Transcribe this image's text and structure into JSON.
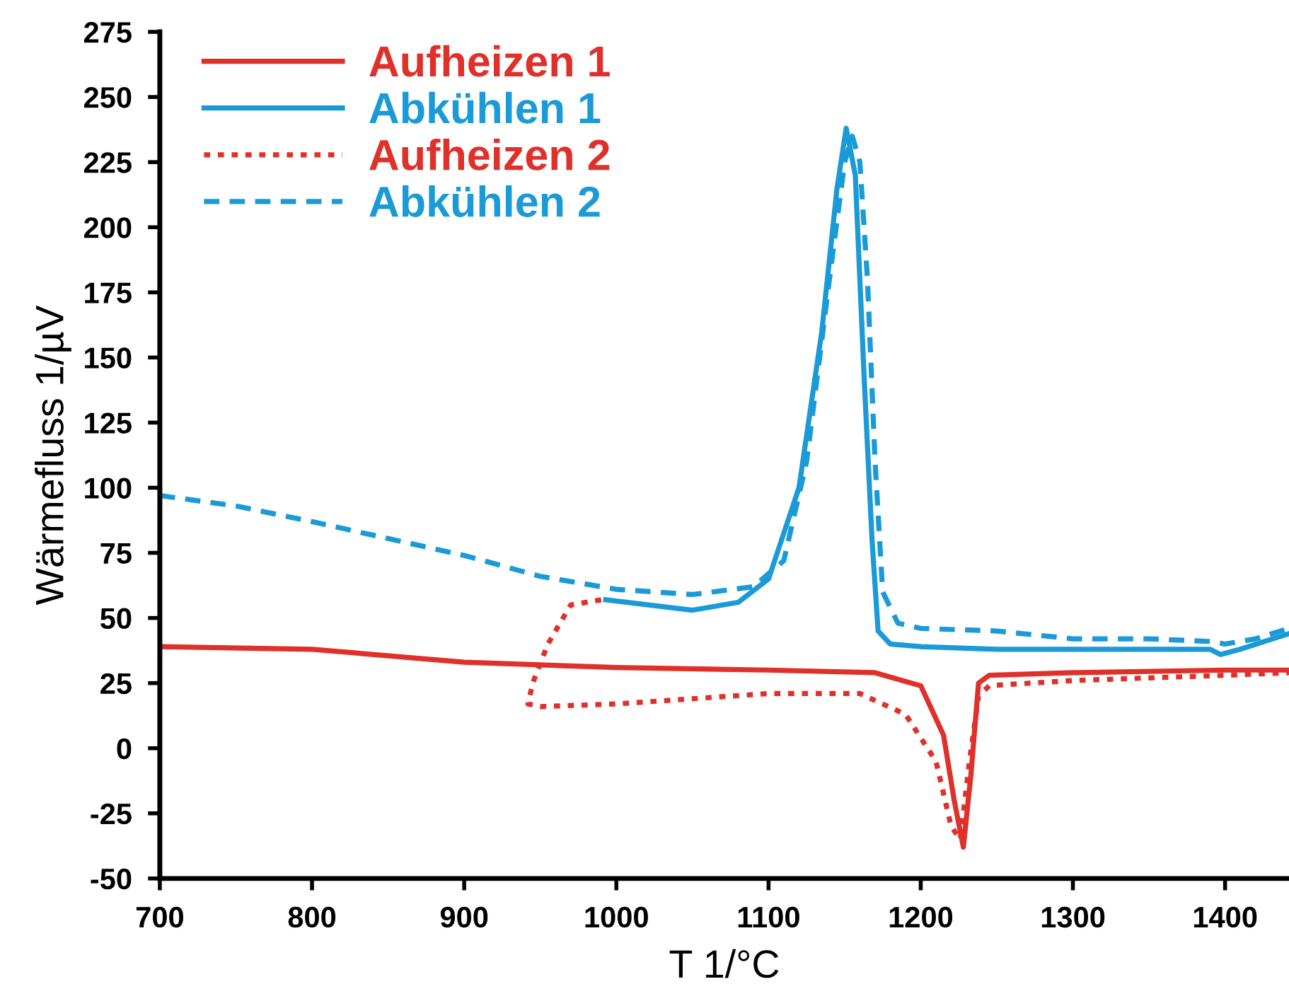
{
  "chart_data": {
    "type": "line",
    "xlabel": "T 1/°C",
    "ylabel": "Wärmefluss 1/µV",
    "xlim": [
      700,
      1442
    ],
    "ylim": [
      -50,
      275
    ],
    "xticks": [
      700,
      800,
      900,
      1000,
      1100,
      1200,
      1300,
      1400
    ],
    "yticks": [
      -50,
      -25,
      0,
      25,
      50,
      75,
      100,
      125,
      150,
      175,
      200,
      225,
      250,
      275
    ],
    "grid": false,
    "legend": "top left",
    "series": [
      {
        "name": "Aufheizen 1",
        "color": "#e0302a",
        "line_style": "solid",
        "x": [
          700,
          800,
          900,
          1000,
          1100,
          1170,
          1200,
          1215,
          1222,
          1228,
          1233,
          1238,
          1245,
          1300,
          1400,
          1442
        ],
        "values": [
          39,
          38,
          33,
          31,
          30,
          29,
          24,
          5,
          -20,
          -38,
          -10,
          25,
          28,
          29,
          30,
          30
        ]
      },
      {
        "name": "Abkühlen 1",
        "color": "#1a9ad6",
        "line_style": "solid",
        "x": [
          993,
          1050,
          1080,
          1100,
          1120,
          1135,
          1145,
          1151,
          1157,
          1163,
          1168,
          1172,
          1180,
          1200,
          1250,
          1300,
          1350,
          1390,
          1397,
          1410,
          1442
        ],
        "values": [
          57,
          53,
          56,
          65,
          100,
          160,
          215,
          238,
          220,
          140,
          80,
          45,
          40,
          39,
          38,
          38,
          38,
          38,
          36,
          38,
          44
        ]
      },
      {
        "name": "Aufheizen 2",
        "color": "#e0302a",
        "line_style": "dotted",
        "x": [
          990,
          970,
          955,
          945,
          942,
          950,
          1000,
          1100,
          1160,
          1190,
          1210,
          1220,
          1226,
          1232,
          1238,
          1245,
          1300,
          1400,
          1442
        ],
        "values": [
          57,
          55,
          40,
          25,
          17,
          16,
          17,
          21,
          21,
          13,
          -5,
          -30,
          -35,
          -5,
          20,
          24,
          26,
          28,
          29
        ]
      },
      {
        "name": "Abkühlen 2",
        "color": "#1a9ad6",
        "line_style": "dashed",
        "x": [
          700,
          750,
          800,
          900,
          950,
          1000,
          1050,
          1090,
          1110,
          1125,
          1140,
          1150,
          1155,
          1160,
          1165,
          1170,
          1175,
          1185,
          1200,
          1250,
          1300,
          1350,
          1390,
          1400,
          1420,
          1442
        ],
        "values": [
          97,
          93,
          87,
          74,
          66,
          61,
          59,
          62,
          72,
          110,
          180,
          225,
          235,
          225,
          180,
          110,
          60,
          48,
          46,
          45,
          42,
          42,
          41,
          40,
          42,
          46
        ]
      }
    ]
  }
}
